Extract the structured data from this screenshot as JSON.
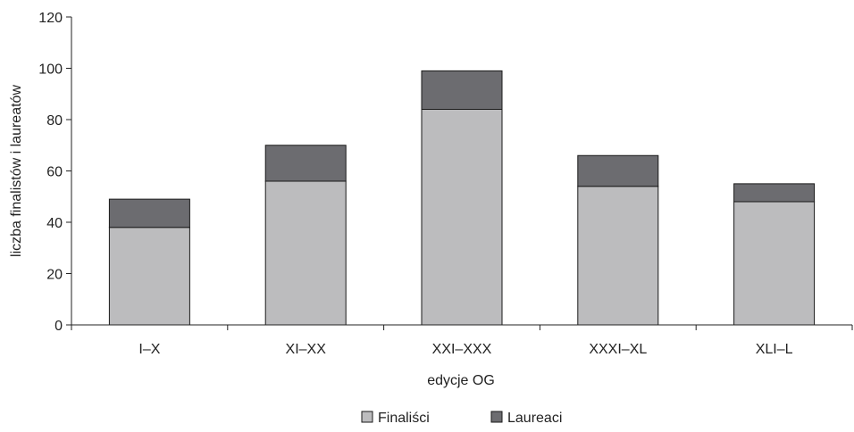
{
  "chart_data": {
    "type": "bar",
    "stacked": true,
    "categories": [
      "I–X",
      "XI–XX",
      "XXI–XXX",
      "XXXI–XL",
      "XLI–L"
    ],
    "series": [
      {
        "name": "Finaliści",
        "values": [
          38,
          56,
          84,
          54,
          48
        ],
        "color": "#bcbcbe"
      },
      {
        "name": "Laureaci",
        "values": [
          11,
          14,
          15,
          12,
          7
        ],
        "color": "#6c6c70"
      }
    ],
    "xlabel": "edycje OG",
    "ylabel": "liczba finalistów i laureatów",
    "ylim": [
      0,
      120
    ],
    "yticks": [
      0,
      20,
      40,
      60,
      80,
      100,
      120
    ],
    "grid": false,
    "legend_position": "bottom"
  }
}
